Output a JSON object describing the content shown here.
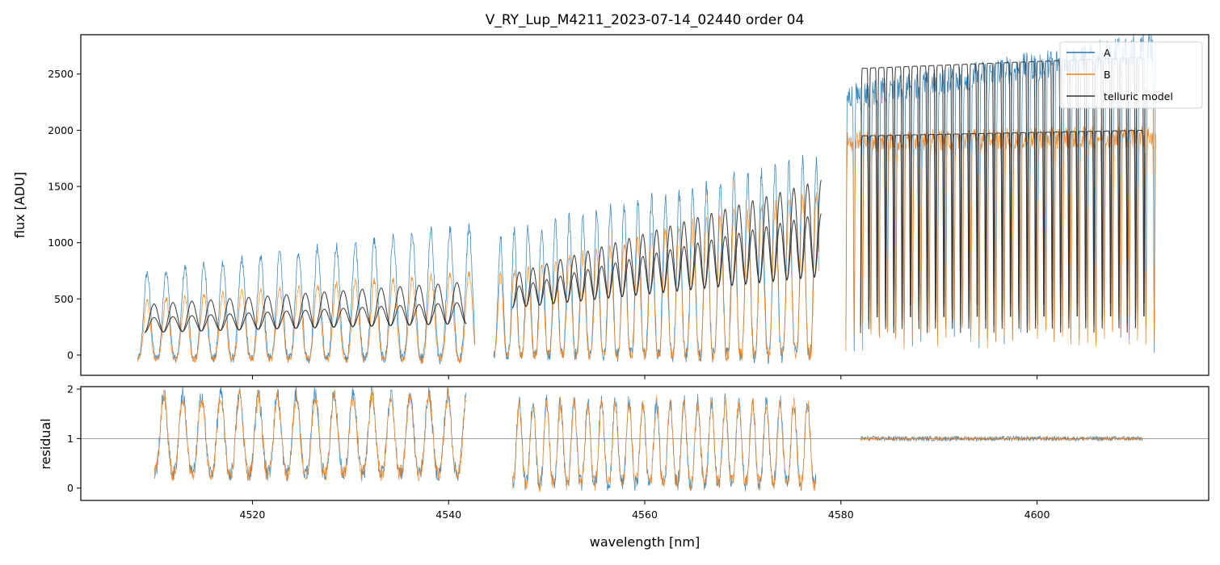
{
  "figure": {
    "title": "V_RY_Lup_M4211_2023-07-14_02440  order 04"
  },
  "chart_data": [
    {
      "type": "line",
      "panel": "top",
      "title": "V_RY_Lup_M4211_2023-07-14_02440  order 04",
      "xlabel": "",
      "ylabel": "flux [ADU]",
      "xlim": [
        4502.5,
        4617.5
      ],
      "ylim": [
        -180,
        2850
      ],
      "yticks": [
        0,
        500,
        1000,
        1500,
        2000,
        2500
      ],
      "ytick_labels": [
        "0",
        "500",
        "1000",
        "1500",
        "2000",
        "2500"
      ],
      "xticks": [
        4520,
        4540,
        4560,
        4580,
        4600
      ],
      "legend": {
        "placement": "top-right",
        "entries": [
          "A",
          "B",
          "telluric model"
        ]
      },
      "series": [
        {
          "name": "A",
          "color": "#1f77b4",
          "segments": [
            {
              "x_range": [
                4508.3,
                4542.7
              ],
              "period": 1.93,
              "peak_start": 720,
              "peak_end": 1150,
              "base": -30
            },
            {
              "x_range": [
                4544.6,
                4577.8
              ],
              "period": 1.4,
              "peak_start": 1050,
              "peak_end": 1750,
              "base": 0
            },
            {
              "x_range": [
                4580.5,
                4612.1
              ],
              "period": 0.85,
              "peak_start": 2300,
              "peak_end": 2750,
              "base": 0
            }
          ]
        },
        {
          "name": "B",
          "color": "#ff7f0e",
          "segments": [
            {
              "x_range": [
                4508.3,
                4542.7
              ],
              "period": 1.93,
              "peak_start": 480,
              "peak_end": 740,
              "base": -40
            },
            {
              "x_range": [
                4544.6,
                4577.8
              ],
              "period": 1.4,
              "peak_start": 700,
              "peak_end": 1450,
              "base": 0
            },
            {
              "x_range": [
                4580.5,
                4612.1
              ],
              "period": 0.85,
              "peak_start": 1900,
              "peak_end": 1950,
              "base": 0
            }
          ]
        },
        {
          "name": "telluric model",
          "color": "#333333",
          "segments": [
            {
              "x_range": [
                4509.0,
                4541.8
              ],
              "period": 1.93,
              "upper_start": 450,
              "upper_end": 650,
              "lower_start": 330,
              "lower_end": 470,
              "min_start": 200,
              "min_end": 280
            },
            {
              "x_range": [
                4546.5,
                4578.0
              ],
              "period": 1.4,
              "upper_start": 720,
              "upper_end": 1560,
              "lower_start": 600,
              "lower_end": 1260,
              "min_start": 420,
              "min_end": 700
            },
            {
              "x_range": [
                4582.0,
                4611.0
              ],
              "period": 0.85,
              "upper_start": 2550,
              "upper_end": 2650,
              "lower_start": 1950,
              "lower_end": 2000,
              "min_start": 200,
              "min_end": 300
            }
          ]
        }
      ]
    },
    {
      "type": "line",
      "panel": "bottom",
      "xlabel": "wavelength [nm]",
      "ylabel": "residual",
      "xlim": [
        4502.5,
        4617.5
      ],
      "ylim": [
        -0.25,
        2.05
      ],
      "yticks": [
        0,
        1,
        2
      ],
      "ytick_labels": [
        "0",
        "1",
        "2"
      ],
      "xticks": [
        4520,
        4540,
        4560,
        4580,
        4600
      ],
      "xtick_labels": [
        "4520",
        "4540",
        "4560",
        "4580",
        "4600"
      ],
      "reference_line": {
        "y": 1,
        "color": "#808080"
      },
      "series": [
        {
          "name": "A",
          "color": "#1f77b4",
          "segments": [
            {
              "x_range": [
                4510.0,
                4541.8
              ],
              "period": 1.93,
              "high": 1.9,
              "low": 0.3
            },
            {
              "x_range": [
                4546.5,
                4577.5
              ],
              "period": 1.4,
              "high": 1.75,
              "low": 0.1
            },
            {
              "x_range": [
                4582.0,
                4610.8
              ],
              "period": 0.85,
              "high": 1.05,
              "low": 0.95
            }
          ]
        },
        {
          "name": "B",
          "color": "#ff7f0e",
          "segments": [
            {
              "x_range": [
                4510.0,
                4541.8
              ],
              "period": 1.93,
              "high": 1.85,
              "low": 0.3
            },
            {
              "x_range": [
                4546.5,
                4577.5
              ],
              "period": 1.4,
              "high": 1.7,
              "low": 0.1
            },
            {
              "x_range": [
                4582.0,
                4610.8
              ],
              "period": 0.85,
              "high": 1.03,
              "low": 0.97
            }
          ]
        }
      ]
    }
  ]
}
